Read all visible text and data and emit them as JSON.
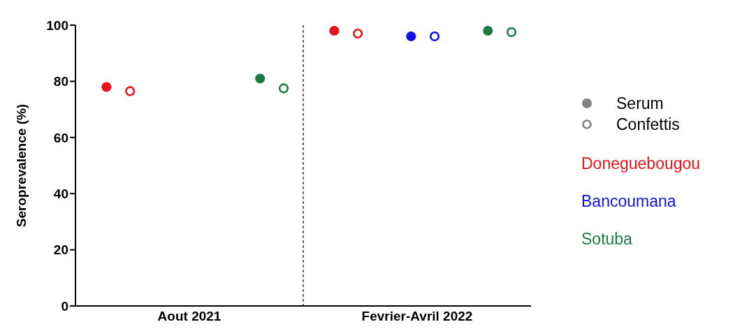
{
  "chart_data": {
    "type": "scatter",
    "ylabel": "Seroprevalence (%)",
    "categories": [
      "Aout 2021",
      "Fevrier-Avril 2022"
    ],
    "ylim": [
      0,
      100
    ],
    "yticks": [
      0,
      20,
      40,
      60,
      80,
      100
    ],
    "legend": "right",
    "marker": "circle",
    "annotations": [
      "Serum",
      "Confettis"
    ],
    "series": [
      {
        "name": "Doneguebougou",
        "color": "#e8141b",
        "values": [
          78,
          98
        ]
      },
      {
        "color": "#e8141b",
        "values": [
          76.5,
          97
        ]
      },
      {
        "name": "Bancoumana",
        "color": "#1010e0",
        "values": [
          null,
          96
        ]
      },
      {
        "color": "#1010e0",
        "values": [
          null,
          96
        ]
      },
      {
        "name": "Sotuba",
        "color": "#1a7a45",
        "values": [
          81,
          98
        ]
      },
      {
        "color": "#1a7a45",
        "values": [
          77.5,
          97.5
        ]
      }
    ]
  }
}
